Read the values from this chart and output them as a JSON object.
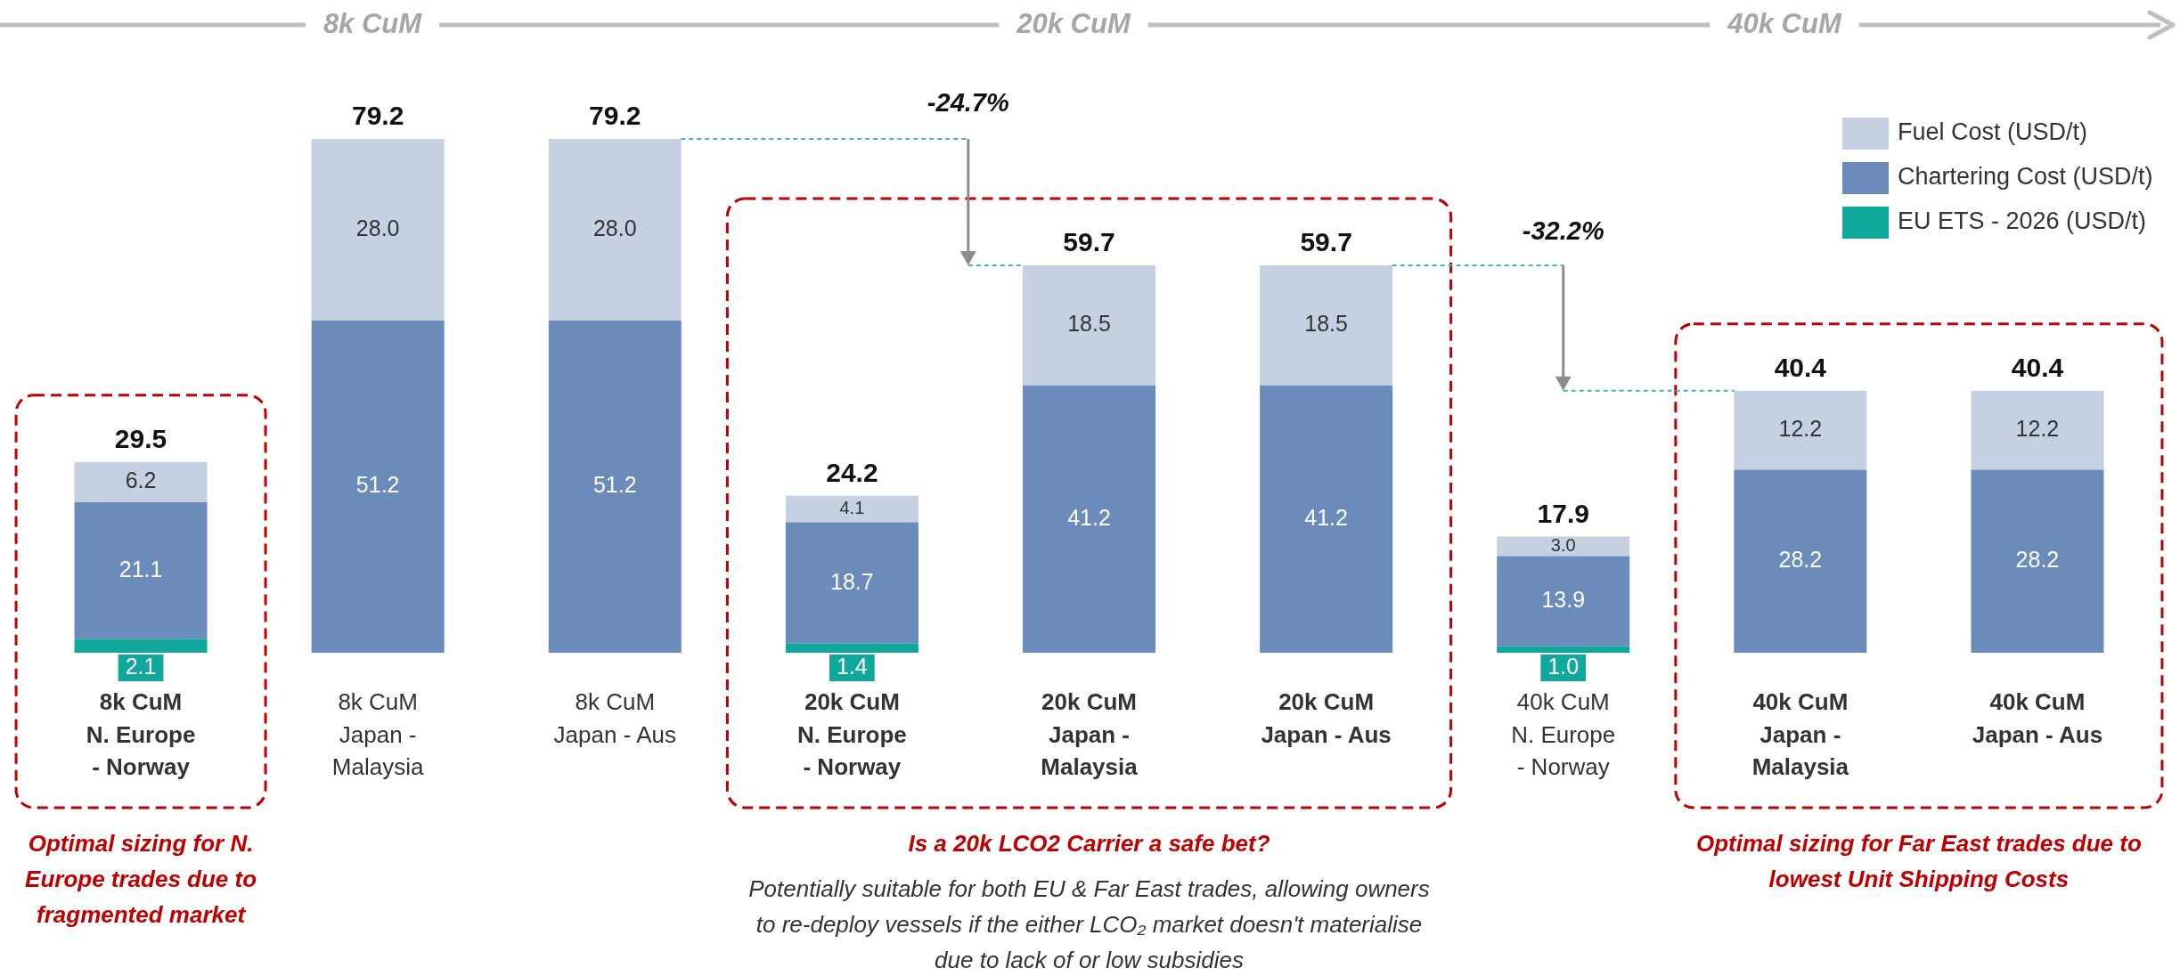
{
  "chart_data": {
    "type": "bar",
    "stacked": true,
    "legend": "top right",
    "categories": [
      "8k CuM\nN. Europe\n- Norway",
      "8k CuM\nJapan -\nMalaysia",
      "8k CuM\nJapan - Aus",
      "20k CuM\nN. Europe\n- Norway",
      "20k CuM\nJapan -\nMalaysia",
      "20k CuM\nJapan - Aus",
      "40k CuM\nN. Europe\n- Norway",
      "40k CuM\nJapan -\nMalaysia",
      "40k CuM\nJapan - Aus"
    ],
    "series": [
      {
        "name": "EU ETS - 2026 (USD/t)",
        "color": "#10a89a",
        "values": [
          2.1,
          null,
          null,
          1.4,
          null,
          null,
          1.0,
          null,
          null
        ],
        "value_labels": [
          "2.1",
          null,
          null,
          "1.4",
          null,
          null,
          "1.0",
          null,
          null
        ]
      },
      {
        "name": "Chartering Cost (USD/t)",
        "color": "#6b8cba",
        "values": [
          21.1,
          51.2,
          51.2,
          18.7,
          41.2,
          41.2,
          13.9,
          28.2,
          28.2
        ],
        "value_labels": [
          "21.1",
          "51.2",
          "51.2",
          "18.7",
          "41.2",
          "41.2",
          "13.9",
          "28.2",
          "28.2"
        ]
      },
      {
        "name": "Fuel Cost (USD/t)",
        "color": "#c5d0e0",
        "values": [
          6.2,
          28.0,
          28.0,
          4.1,
          18.5,
          18.5,
          3.0,
          12.2,
          12.2
        ],
        "value_labels": [
          "6.2",
          "28.0",
          "28.0",
          "4.1",
          "18.5",
          "18.5",
          "3.0",
          "12.2",
          "12.2"
        ]
      }
    ],
    "totals": [
      "29.5",
      "79.2",
      "79.2",
      "24.2",
      "59.7",
      "59.7",
      "17.9",
      "40.4",
      "40.4"
    ],
    "annotations": [
      "8k CuM",
      "20k CuM",
      "40k CuM",
      "-24.7%",
      "-32.2%",
      "Optimal sizing for N. Europe trades due to fragmented market",
      "Is a 20k LCO2 Carrier a safe bet?",
      "Potentially suitable for both EU & Far East trades, allowing owners to re-deploy vessels if the either LCO₂ market doesn't materialise due to lack of or low subsidies",
      "Optimal sizing for Far East trades due to lowest Unit Shipping Costs"
    ]
  }
}
